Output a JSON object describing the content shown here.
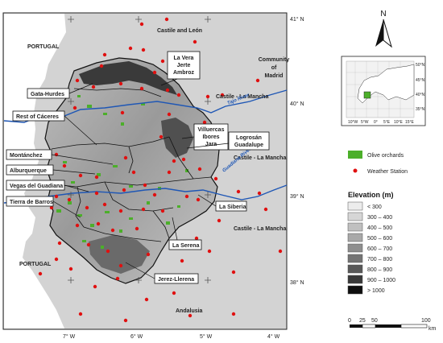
{
  "regions": {
    "castile_leon": "Castile and León",
    "community_madrid": "Community\nof\nMadrid",
    "castile_mancha_1": "Castile - La Mancha",
    "castile_mancha_2": "Castile - La Mancha",
    "castile_mancha_3": "Castile - La Mancha",
    "portugal_1": "PORTUGAL",
    "portugal_2": "PORTUGAL",
    "andalusia": "Andalusia"
  },
  "rivers": {
    "tajo": "Tajo River",
    "guadiana": "Guadiana River"
  },
  "zones": [
    "La Vera\nJerte\nAmbroz",
    "Gata-Hurdes",
    "Rest of Cáceres",
    "Villuercas\nIbores\nJara",
    "Logrosán\nGuadalupe",
    "Montánchez",
    "Alburquerque",
    "Vegas del Guadiana",
    "Tierra de Barros",
    "La Siberia",
    "La Serena",
    "Jerez-Llerena"
  ],
  "lat_ticks": [
    "41° N",
    "40° N",
    "39° N",
    "38° N"
  ],
  "lon_ticks": [
    "7° W",
    "6° W",
    "5° W",
    "4° W"
  ],
  "inset": {
    "lat_ticks": [
      "50°N",
      "45°N",
      "40°N",
      "35°N"
    ],
    "lon_ticks": [
      "10°W",
      "5°W",
      "0°",
      "5°E",
      "10°E",
      "15°E"
    ]
  },
  "legend": {
    "olive": "Olive orchards",
    "station": "Weather Station",
    "elev_title": "Elevation (m)",
    "elev_classes": [
      "< 300",
      "300 – 400",
      "400 – 500",
      "500 – 600",
      "600 – 700",
      "700 – 800",
      "800 – 900",
      "900 – 1000",
      "> 1000"
    ],
    "elev_colors": [
      "#ececec",
      "#d6d6d6",
      "#c0c0c0",
      "#a8a8a8",
      "#8e8e8e",
      "#747474",
      "#585858",
      "#383838",
      "#0e0e0e"
    ]
  },
  "scale": {
    "ticks": [
      "0",
      "25",
      "50",
      "100"
    ],
    "unit": "km"
  },
  "north": "N",
  "colors": {
    "olive": "#4caf2a",
    "station": "#e01010",
    "river": "#1f57b5",
    "outside": "#d3d3d3"
  }
}
